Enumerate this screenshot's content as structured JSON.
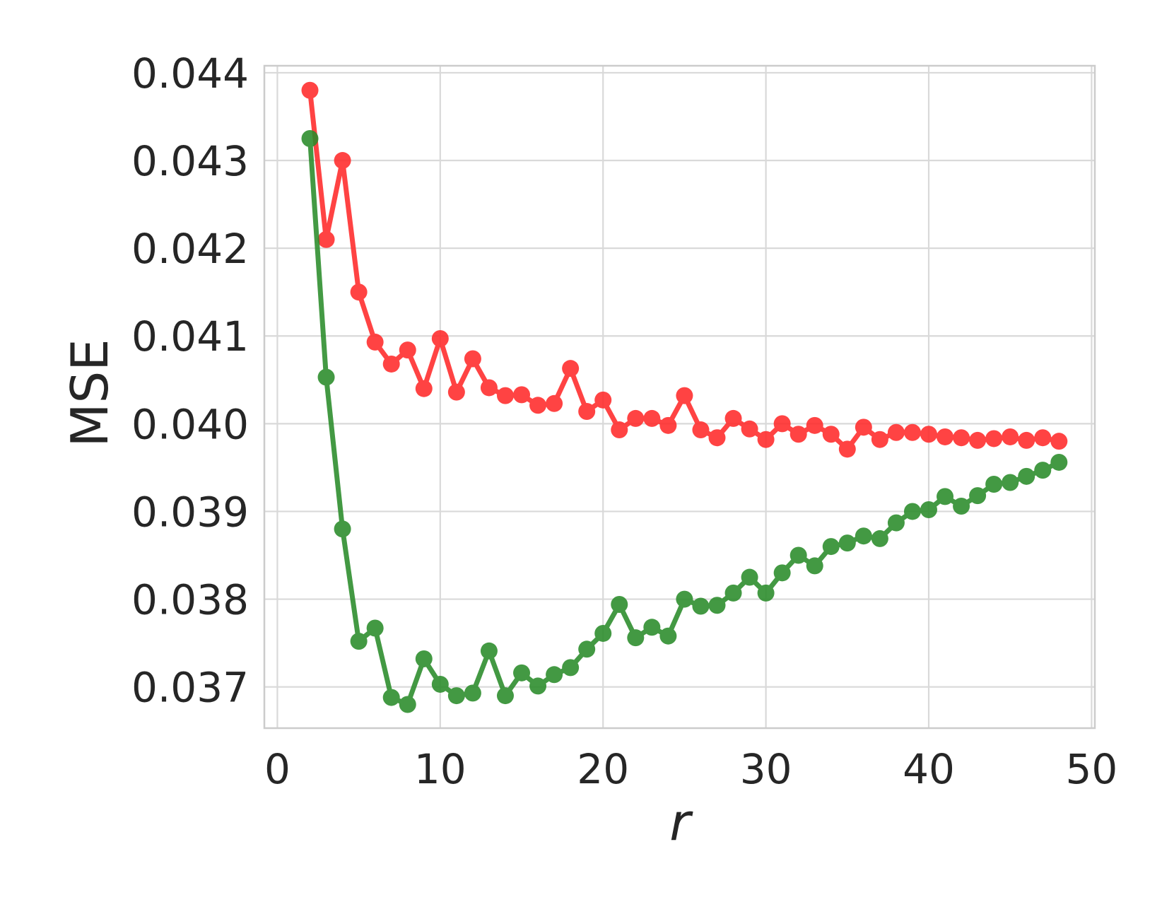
{
  "chart_data": {
    "type": "line",
    "xlabel": "r",
    "ylabel": "MSE",
    "xlim": [
      -0.8,
      50.2
    ],
    "ylim": [
      0.03653,
      0.04408
    ],
    "xticks": [
      0,
      10,
      20,
      30,
      40,
      50
    ],
    "yticks": [
      0.037,
      0.038,
      0.039,
      0.04,
      0.041,
      0.042,
      0.043,
      0.044
    ],
    "xtick_labels": [
      "0",
      "10",
      "20",
      "30",
      "40",
      "50"
    ],
    "ytick_labels": [
      "0.037",
      "0.038",
      "0.039",
      "0.040",
      "0.041",
      "0.042",
      "0.043",
      "0.044"
    ],
    "grid": true,
    "x": [
      2,
      3,
      4,
      5,
      6,
      7,
      8,
      9,
      10,
      11,
      12,
      13,
      14,
      15,
      16,
      17,
      18,
      19,
      20,
      21,
      22,
      23,
      24,
      25,
      26,
      27,
      28,
      29,
      30,
      31,
      32,
      33,
      34,
      35,
      36,
      37,
      38,
      39,
      40,
      41,
      42,
      43,
      44,
      45,
      46,
      47,
      48
    ],
    "series": [
      {
        "color": "#ff2a2a",
        "values": [
          0.0438,
          0.0421,
          0.043,
          0.0415,
          0.04093,
          0.04068,
          0.04084,
          0.0404,
          0.04097,
          0.04036,
          0.04074,
          0.04041,
          0.04032,
          0.04033,
          0.04021,
          0.04023,
          0.04063,
          0.04014,
          0.04027,
          0.03993,
          0.04006,
          0.04006,
          0.03998,
          0.04032,
          0.03993,
          0.03984,
          0.04006,
          0.03994,
          0.03982,
          0.04,
          0.03988,
          0.03998,
          0.03988,
          0.03971,
          0.03996,
          0.03982,
          0.0399,
          0.0399,
          0.03988,
          0.03985,
          0.03984,
          0.03981,
          0.03983,
          0.03985,
          0.03981,
          0.03984,
          0.0398
        ]
      },
      {
        "color": "#2a8c2a",
        "values": [
          0.04325,
          0.04053,
          0.0388,
          0.03752,
          0.03767,
          0.03688,
          0.0368,
          0.03732,
          0.03703,
          0.0369,
          0.03693,
          0.03741,
          0.0369,
          0.03716,
          0.03701,
          0.03714,
          0.03722,
          0.03743,
          0.03761,
          0.03794,
          0.03756,
          0.03768,
          0.03758,
          0.038,
          0.03792,
          0.03793,
          0.03807,
          0.03825,
          0.03807,
          0.0383,
          0.0385,
          0.03838,
          0.0386,
          0.03864,
          0.03872,
          0.03869,
          0.03887,
          0.039,
          0.03902,
          0.03917,
          0.03906,
          0.03918,
          0.03931,
          0.03933,
          0.0394,
          0.03947,
          0.03956
        ]
      }
    ]
  }
}
